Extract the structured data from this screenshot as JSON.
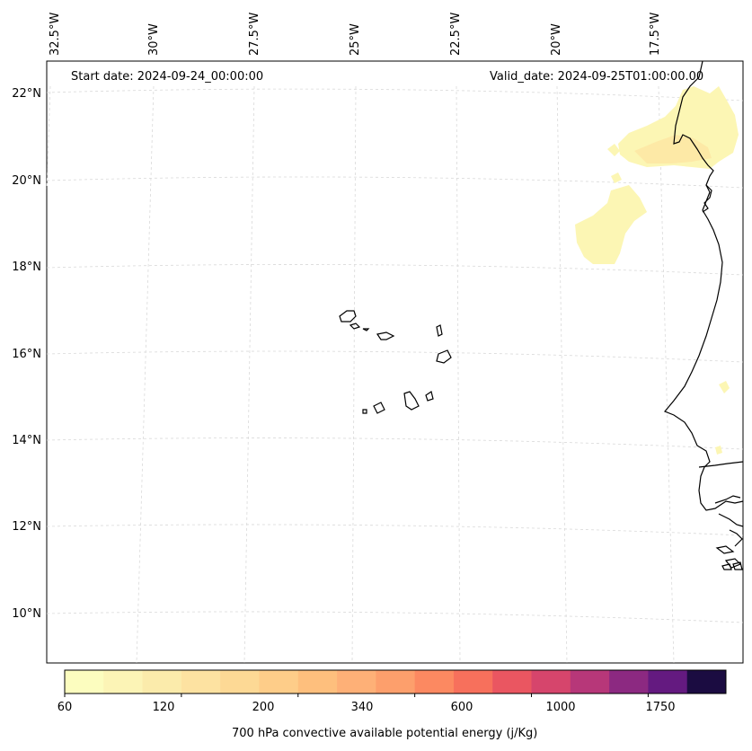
{
  "map": {
    "start_date": "Start date: 2024-09-24_00:00:00",
    "valid_date": "Valid_date: 2024-09-25T01:00:00.00",
    "lon_labels": [
      "32.5°W",
      "30°W",
      "27.5°W",
      "25°W",
      "22.5°W",
      "20°W",
      "17.5°W"
    ],
    "lat_labels": [
      "22°N",
      "20°N",
      "18°N",
      "16°N",
      "14°N",
      "12°N",
      "10°N"
    ]
  },
  "colorbar": {
    "label": "700 hPa convective available potential energy (j/Kg)",
    "tick_labels": [
      "60",
      "120",
      "200",
      "340",
      "600",
      "1000",
      "1750"
    ],
    "colors": [
      "#fcfdbf",
      "#fcf4b6",
      "#fbebab",
      "#fde2a1",
      "#fdd995",
      "#fecd89",
      "#febf7d",
      "#feb077",
      "#fd9f6c",
      "#fc8961",
      "#f7705c",
      "#ea5661",
      "#d6456c",
      "#b73779",
      "#8c2981",
      "#641a80",
      "#1b0c41"
    ]
  },
  "style": {
    "coast_color": "#000000",
    "grid_color": "#d9d9d9",
    "cape_low_color": "#fcf6b4",
    "cape_mid_color": "#fde9a6"
  }
}
